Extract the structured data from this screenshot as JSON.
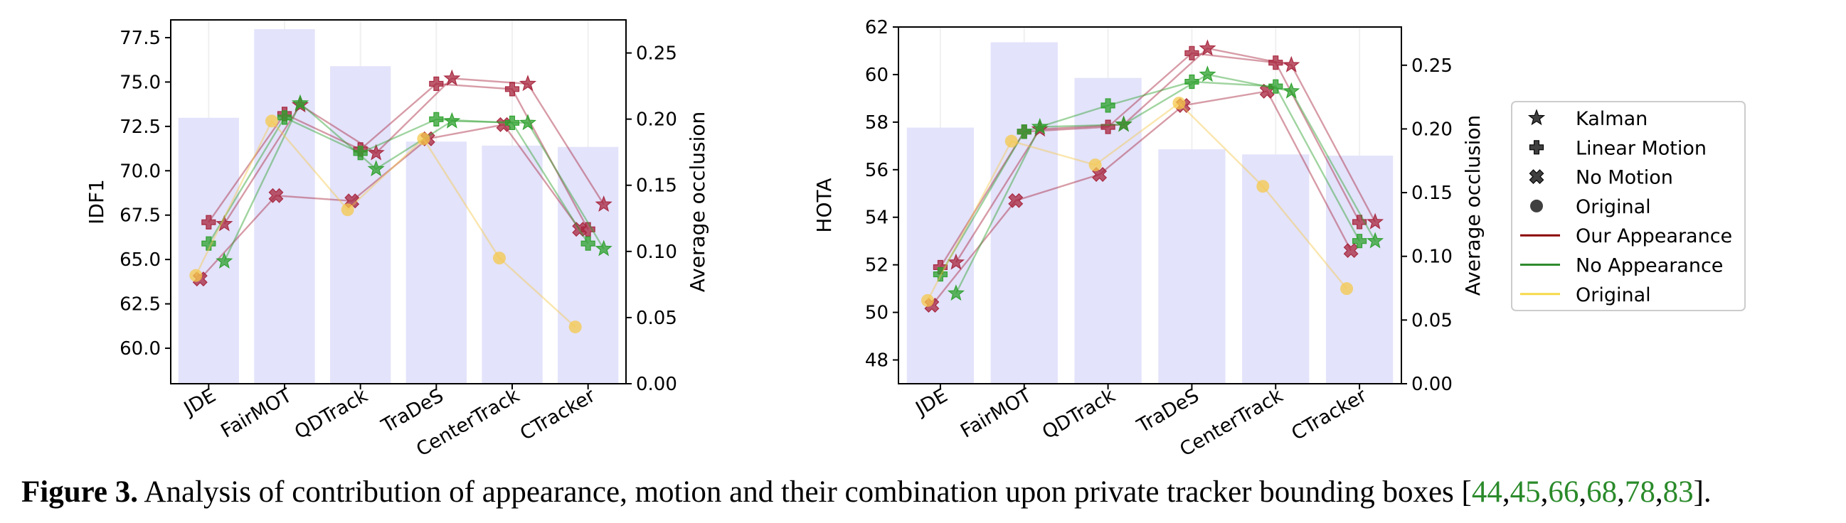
{
  "figure": {
    "caption_label": "Figure 3.",
    "caption_text": "Analysis of contribution of appearance, motion and their combination upon private tracker bounding boxes [",
    "caption_refs": [
      "44",
      "45",
      "66",
      "68",
      "78",
      "83"
    ],
    "caption_end": "]."
  },
  "colors": {
    "bar": "#e3e3fb",
    "our_appearance": "#a7243c",
    "no_appearance": "#2ca02c",
    "original": "#f5c84b"
  },
  "chart_data": [
    {
      "type": "bar+line",
      "categories": [
        "JDE",
        "FairMOT",
        "QDTrack",
        "TraDeS",
        "CenterTrack",
        "CTracker"
      ],
      "ylabel": "IDF1",
      "ylabel_right": "Average occlusion",
      "ylim": [
        58.0,
        78.5
      ],
      "y_ticks": [
        60.0,
        62.5,
        65.0,
        67.5,
        70.0,
        72.5,
        75.0,
        77.5
      ],
      "y_tick_labels": [
        "60.0",
        "62.5",
        "65.0",
        "67.5",
        "70.0",
        "72.5",
        "75.0",
        "77.5"
      ],
      "ylim_right": [
        0.0,
        0.275
      ],
      "y_right_ticks": [
        0.0,
        0.05,
        0.1,
        0.15,
        0.2,
        0.25
      ],
      "y_right_tick_labels": [
        "0.00",
        "0.05",
        "0.10",
        "0.15",
        "0.20",
        "0.25"
      ],
      "bars": [
        0.201,
        0.268,
        0.24,
        0.183,
        0.18,
        0.179
      ],
      "series": [
        {
          "appearance": "Our Appearance",
          "motion": "Kalman",
          "values": [
            67.0,
            73.7,
            71.0,
            75.2,
            74.9,
            68.1
          ]
        },
        {
          "appearance": "Our Appearance",
          "motion": "Linear Motion",
          "values": [
            67.1,
            73.2,
            71.2,
            74.9,
            74.6,
            66.7
          ]
        },
        {
          "appearance": "Our Appearance",
          "motion": "No Motion",
          "values": [
            63.9,
            68.6,
            68.3,
            71.8,
            72.6,
            66.7
          ]
        },
        {
          "appearance": "No Appearance",
          "motion": "Kalman",
          "values": [
            64.9,
            73.8,
            70.1,
            72.8,
            72.7,
            65.6
          ]
        },
        {
          "appearance": "No Appearance",
          "motion": "Linear Motion",
          "values": [
            65.9,
            73.0,
            71.0,
            72.9,
            72.7,
            65.9
          ]
        },
        {
          "appearance": "Original",
          "motion": "Original",
          "values": [
            64.1,
            72.8,
            67.8,
            71.8,
            null,
            61.2
          ],
          "occlusion_values": [
            null,
            null,
            null,
            null,
            0.095,
            null
          ]
        }
      ]
    },
    {
      "type": "bar+line",
      "categories": [
        "JDE",
        "FairMOT",
        "QDTrack",
        "TraDeS",
        "CenterTrack",
        "CTracker"
      ],
      "ylabel": "HOTA",
      "ylabel_right": "Average occlusion",
      "ylim": [
        47.0,
        62.0
      ],
      "y_ticks": [
        48,
        50,
        52,
        54,
        56,
        58,
        60,
        62
      ],
      "y_tick_labels": [
        "48",
        "50",
        "52",
        "54",
        "56",
        "58",
        "60",
        "62"
      ],
      "ylim_right": [
        0.0,
        0.28
      ],
      "y_right_ticks": [
        0.0,
        0.05,
        0.1,
        0.15,
        0.2,
        0.25
      ],
      "y_right_tick_labels": [
        "0.00",
        "0.05",
        "0.10",
        "0.15",
        "0.20",
        "0.25"
      ],
      "bars": [
        0.201,
        0.268,
        0.24,
        0.184,
        0.18,
        0.179
      ],
      "series": [
        {
          "appearance": "Our Appearance",
          "motion": "Kalman",
          "values": [
            52.1,
            57.7,
            57.9,
            61.1,
            60.4,
            53.8
          ]
        },
        {
          "appearance": "Our Appearance",
          "motion": "Linear Motion",
          "values": [
            51.9,
            57.6,
            57.8,
            60.9,
            60.5,
            53.8
          ]
        },
        {
          "appearance": "Our Appearance",
          "motion": "No Motion",
          "values": [
            50.3,
            54.7,
            55.8,
            58.7,
            59.3,
            52.6
          ]
        },
        {
          "appearance": "No Appearance",
          "motion": "Kalman",
          "values": [
            50.8,
            57.8,
            57.9,
            60.0,
            59.3,
            53.0
          ]
        },
        {
          "appearance": "No Appearance",
          "motion": "Linear Motion",
          "values": [
            51.6,
            57.6,
            58.7,
            59.7,
            59.5,
            53.0
          ]
        },
        {
          "appearance": "Original",
          "motion": "Original",
          "values": [
            50.5,
            57.2,
            56.2,
            58.8,
            55.3,
            51.0
          ]
        }
      ]
    }
  ],
  "legend": {
    "placement": "right",
    "markers": [
      {
        "label": "Kalman",
        "marker": "star"
      },
      {
        "label": "Linear Motion",
        "marker": "plus"
      },
      {
        "label": "No Motion",
        "marker": "x"
      },
      {
        "label": "Original",
        "marker": "circle"
      }
    ],
    "lines": [
      {
        "label": "Our Appearance",
        "color": "#8b0000"
      },
      {
        "label": "No Appearance",
        "color": "#2e8b2e"
      },
      {
        "label": "Original",
        "color": "#f7d94a"
      }
    ]
  }
}
